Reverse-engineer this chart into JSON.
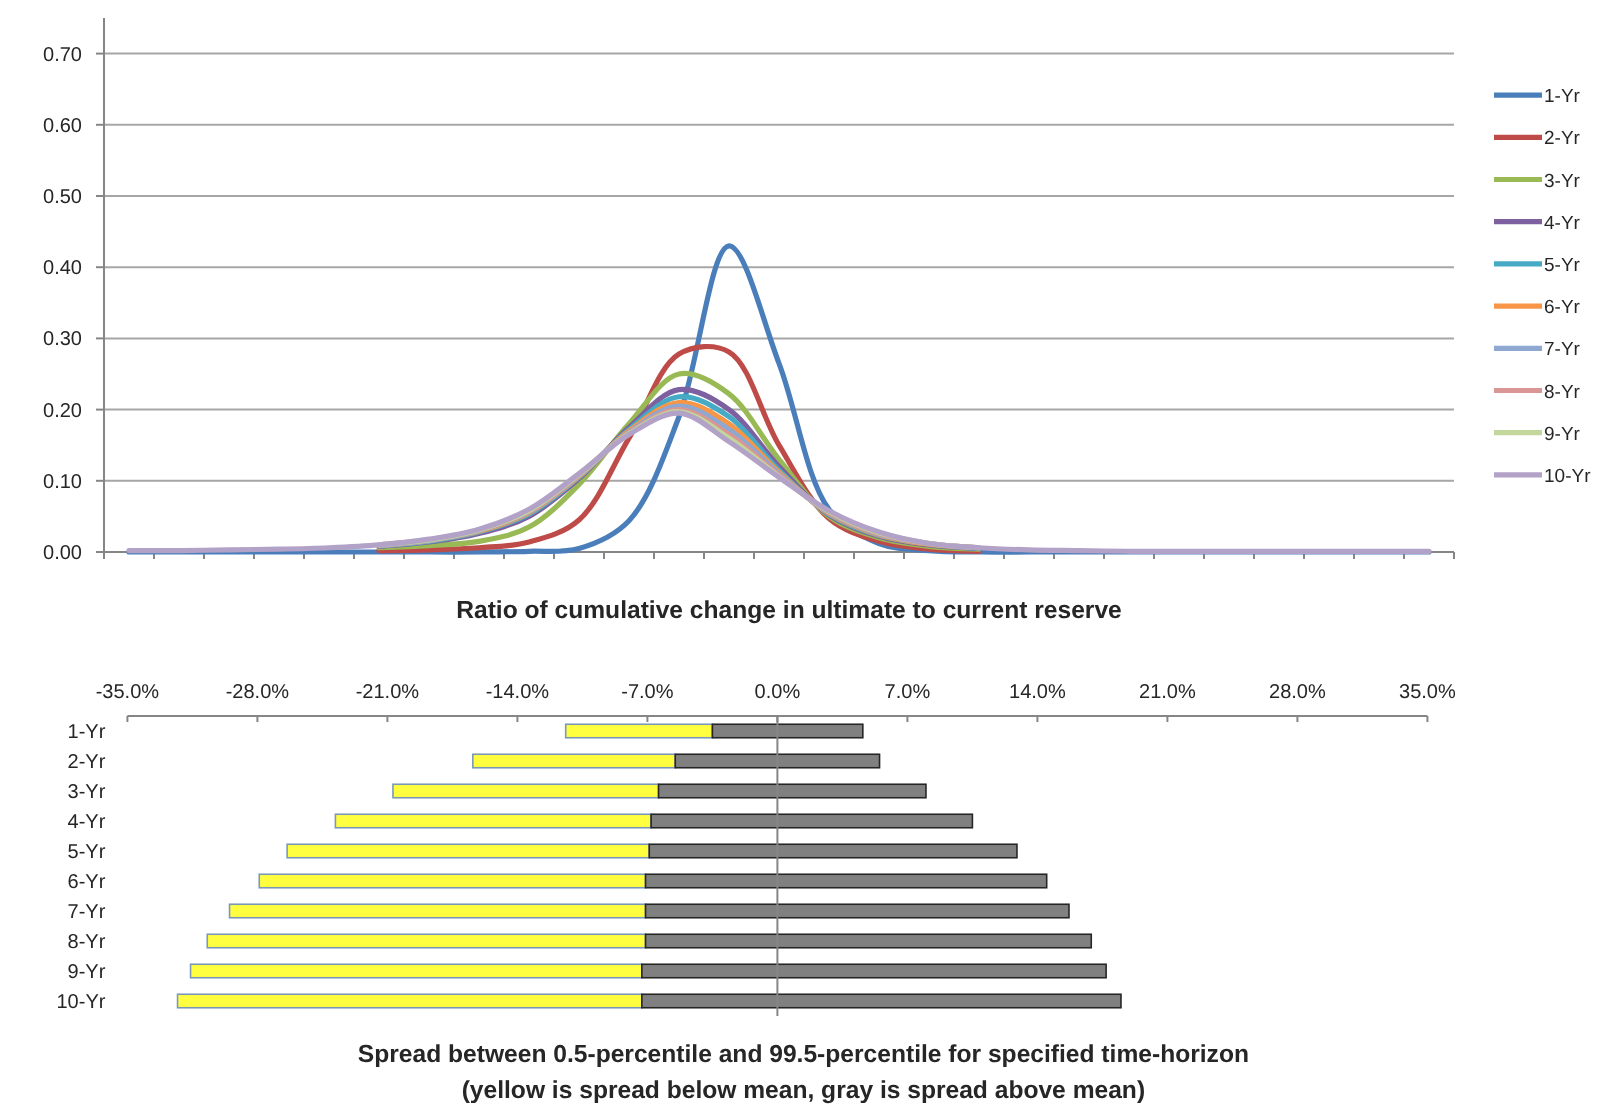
{
  "chart_data": [
    {
      "type": "line",
      "xlabel": "Ratio of cumulative change in ultimate to current reserve",
      "categories": [
        null,
        null,
        null,
        null,
        null,
        null,
        null,
        null,
        null,
        null,
        null,
        null,
        null,
        null,
        null,
        null,
        null,
        null,
        null,
        null,
        null,
        null,
        null,
        null,
        null,
        null,
        null
      ],
      "series": [
        {
          "name": "1-Yr",
          "color": "#4a7ebb",
          "values": [
            0,
            0,
            0,
            0,
            0,
            0,
            0,
            0,
            0.001,
            0.005,
            0.044,
            0.19,
            0.43,
            0.265,
            0.06,
            0.012,
            0.002,
            0,
            0,
            0,
            0,
            0,
            0,
            0,
            0,
            0,
            0
          ]
        },
        {
          "name": "2-Yr",
          "color": "#be4b48",
          "values": [
            null,
            null,
            null,
            null,
            null,
            0.002,
            0.003,
            0.006,
            0.014,
            0.045,
            0.16,
            0.278,
            0.281,
            0.15,
            0.047,
            0.015,
            0.004,
            0.001,
            null,
            null,
            null,
            null,
            null,
            null,
            null,
            null,
            null
          ]
        },
        {
          "name": "3-Yr",
          "color": "#98b954",
          "values": [
            null,
            null,
            null,
            null,
            null,
            0.006,
            0.009,
            0.015,
            0.035,
            0.095,
            0.18,
            0.25,
            0.222,
            0.13,
            0.05,
            0.02,
            0.008,
            0.004,
            null,
            null,
            null,
            null,
            null,
            null,
            null,
            null,
            null
          ]
        },
        {
          "name": "4-Yr",
          "color": "#7d60a0",
          "values": [
            null,
            null,
            null,
            null,
            null,
            0.008,
            0.014,
            0.026,
            0.05,
            0.103,
            0.175,
            0.228,
            0.2,
            0.12,
            0.052,
            0.022,
            0.01,
            0.005,
            null,
            null,
            null,
            null,
            null,
            null,
            null,
            null,
            null
          ]
        },
        {
          "name": "5-Yr",
          "color": "#46aac5",
          "values": [
            null,
            null,
            null,
            null,
            null,
            0.009,
            0.015,
            0.028,
            0.053,
            0.105,
            0.172,
            0.218,
            0.19,
            0.115,
            0.053,
            0.023,
            0.011,
            0.005,
            null,
            null,
            null,
            null,
            null,
            null,
            null,
            null,
            null
          ]
        },
        {
          "name": "6-Yr",
          "color": "#f79646",
          "values": [
            null,
            null,
            null,
            null,
            null,
            0.009,
            0.016,
            0.029,
            0.055,
            0.106,
            0.17,
            0.21,
            0.18,
            0.112,
            0.054,
            0.024,
            0.011,
            0.006,
            null,
            null,
            null,
            null,
            null,
            null,
            null,
            null,
            null
          ]
        },
        {
          "name": "7-Yr",
          "color": "#8ea8d2",
          "values": [
            null,
            null,
            null,
            null,
            null,
            0.009,
            0.016,
            0.03,
            0.056,
            0.107,
            0.168,
            0.205,
            0.172,
            0.11,
            0.055,
            0.025,
            0.012,
            0.006,
            null,
            null,
            null,
            null,
            null,
            null,
            null,
            null,
            null
          ]
        },
        {
          "name": "8-Yr",
          "color": "#d99694",
          "values": [
            null,
            null,
            null,
            null,
            null,
            0.01,
            0.017,
            0.031,
            0.057,
            0.108,
            0.167,
            0.2,
            0.165,
            0.108,
            0.056,
            0.026,
            0.012,
            0.006,
            null,
            null,
            null,
            null,
            null,
            null,
            null,
            null,
            null
          ]
        },
        {
          "name": "9-Yr",
          "color": "#c3d69b",
          "values": [
            null,
            null,
            null,
            null,
            null,
            0.01,
            0.017,
            0.031,
            0.058,
            0.109,
            0.166,
            0.197,
            0.16,
            0.106,
            0.057,
            0.027,
            0.012,
            0.006,
            null,
            null,
            null,
            null,
            null,
            null,
            null,
            null,
            null
          ]
        },
        {
          "name": "10-Yr",
          "color": "#b3a2c7",
          "values": [
            0.002,
            0.002,
            0.003,
            0.004,
            0.006,
            0.01,
            0.018,
            0.032,
            0.06,
            0.11,
            0.165,
            0.195,
            0.155,
            0.105,
            0.058,
            0.028,
            0.012,
            0.006,
            0.003,
            0.002,
            0.001,
            0.001,
            0.001,
            0.001,
            0.001,
            0.001,
            0.001
          ]
        }
      ],
      "ylim": [
        0,
        0.75
      ],
      "yticks": [
        {
          "value": 0,
          "label": "0.00"
        },
        {
          "value": 0.1,
          "label": "0.10"
        },
        {
          "value": 0.2,
          "label": "0.20"
        },
        {
          "value": 0.3,
          "label": "0.30"
        },
        {
          "value": 0.4,
          "label": "0.40"
        },
        {
          "value": 0.5,
          "label": "0.50"
        },
        {
          "value": 0.6,
          "label": "0.60"
        },
        {
          "value": 0.7,
          "label": "0.70"
        }
      ],
      "grid": "y",
      "legend": "right",
      "tick_labels": "y"
    },
    {
      "type": "bar",
      "orientation": "horizontal",
      "title": "Spread between 0.5-percentile and 99.5-percentile for specified time-horizon",
      "subtitle": "(yellow is spread below mean, gray is spread above mean)",
      "categories": [
        "1-Yr",
        "2-Yr",
        "3-Yr",
        "4-Yr",
        "5-Yr",
        "6-Yr",
        "7-Yr",
        "8-Yr",
        "9-Yr",
        "10-Yr"
      ],
      "series": [
        {
          "color": "#ffff40",
          "base": [
            -11.4,
            -16.4,
            -20.7,
            -23.8,
            -26.4,
            -27.9,
            -29.5,
            -30.7,
            -31.6,
            -32.3
          ],
          "values": [
            7.9,
            10.9,
            14.3,
            17.0,
            19.5,
            20.8,
            22.4,
            23.6,
            24.3,
            25.0
          ]
        },
        {
          "color": "#808080",
          "base": [
            -3.5,
            -5.5,
            -6.4,
            -6.8,
            -6.9,
            -7.1,
            -7.1,
            -7.1,
            -7.3,
            -7.3
          ],
          "values": [
            8.1,
            11.0,
            14.4,
            17.3,
            19.8,
            21.6,
            22.8,
            24.0,
            25.0,
            25.8
          ]
        }
      ],
      "xlim": [
        -35,
        35
      ],
      "xticks": [
        {
          "value": -35,
          "label": "-35.0%"
        },
        {
          "value": -28,
          "label": "-28.0%"
        },
        {
          "value": -21,
          "label": "-21.0%"
        },
        {
          "value": -14,
          "label": "-14.0%"
        },
        {
          "value": -7,
          "label": "-7.0%"
        },
        {
          "value": 0,
          "label": "0.0%"
        },
        {
          "value": 7,
          "label": "7.0%"
        },
        {
          "value": 14,
          "label": "14.0%"
        },
        {
          "value": 21,
          "label": "21.0%"
        },
        {
          "value": 28,
          "label": "28.0%"
        },
        {
          "value": 35,
          "label": "35.0%"
        }
      ]
    }
  ]
}
